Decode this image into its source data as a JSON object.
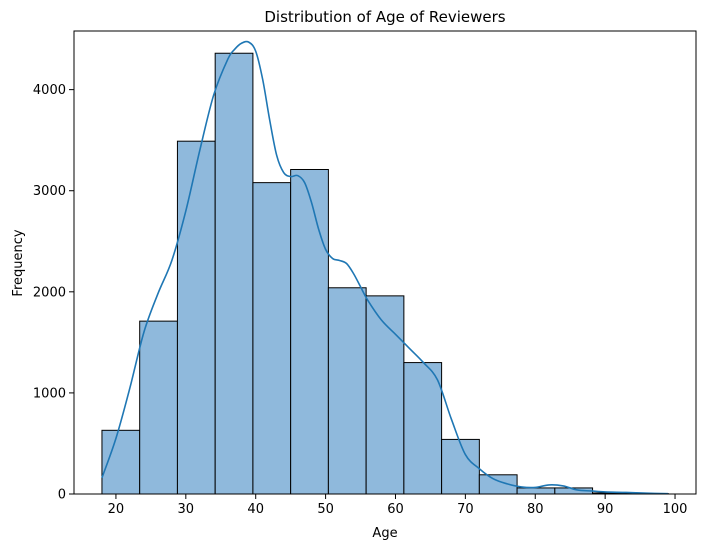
{
  "chart_data": {
    "type": "bar",
    "title": "Distribution of Age of Reviewers",
    "xlabel": "Age",
    "ylabel": "Frequency",
    "xlim": [
      14,
      103
    ],
    "ylim": [
      0,
      4580
    ],
    "xticks": [
      20,
      30,
      40,
      50,
      60,
      70,
      80,
      90,
      100
    ],
    "yticks": [
      0,
      1000,
      2000,
      3000,
      4000
    ],
    "bins": [
      {
        "start": 18.0,
        "end": 23.4,
        "count": 630
      },
      {
        "start": 23.4,
        "end": 28.8,
        "count": 1710
      },
      {
        "start": 28.8,
        "end": 34.2,
        "count": 3490
      },
      {
        "start": 34.2,
        "end": 39.6,
        "count": 4360
      },
      {
        "start": 39.6,
        "end": 45.0,
        "count": 3080
      },
      {
        "start": 45.0,
        "end": 50.4,
        "count": 3210
      },
      {
        "start": 50.4,
        "end": 55.8,
        "count": 2040
      },
      {
        "start": 55.8,
        "end": 61.2,
        "count": 1960
      },
      {
        "start": 61.2,
        "end": 66.6,
        "count": 1300
      },
      {
        "start": 66.6,
        "end": 72.0,
        "count": 540
      },
      {
        "start": 72.0,
        "end": 77.4,
        "count": 190
      },
      {
        "start": 77.4,
        "end": 82.8,
        "count": 60
      },
      {
        "start": 82.8,
        "end": 88.2,
        "count": 60
      },
      {
        "start": 88.2,
        "end": 93.6,
        "count": 10
      },
      {
        "start": 93.6,
        "end": 99.0,
        "count": 5
      }
    ],
    "kde": {
      "x": [
        18,
        20,
        22,
        24,
        26,
        28,
        30,
        32,
        34,
        36,
        37,
        38,
        39,
        40,
        41,
        42,
        43,
        44,
        45,
        46,
        47,
        48,
        49,
        50,
        51,
        52,
        53,
        54,
        55,
        56,
        58,
        60,
        62,
        64,
        66,
        68,
        70,
        72,
        74,
        76,
        78,
        80,
        82,
        84,
        86,
        88,
        90,
        93,
        96,
        99
      ],
      "y": [
        160,
        550,
        1050,
        1600,
        1980,
        2310,
        2800,
        3400,
        3950,
        4300,
        4400,
        4460,
        4470,
        4380,
        4100,
        3700,
        3350,
        3180,
        3140,
        3150,
        3080,
        2880,
        2620,
        2420,
        2330,
        2310,
        2280,
        2180,
        2050,
        1920,
        1720,
        1580,
        1440,
        1300,
        1130,
        740,
        390,
        250,
        150,
        100,
        70,
        65,
        90,
        80,
        40,
        30,
        20,
        15,
        8,
        3
      ]
    },
    "colors": {
      "bar_fill": "#8fb9dc",
      "bar_edge": "#000000",
      "kde_line": "#1f77b4"
    },
    "grid": false,
    "legend": "none"
  }
}
